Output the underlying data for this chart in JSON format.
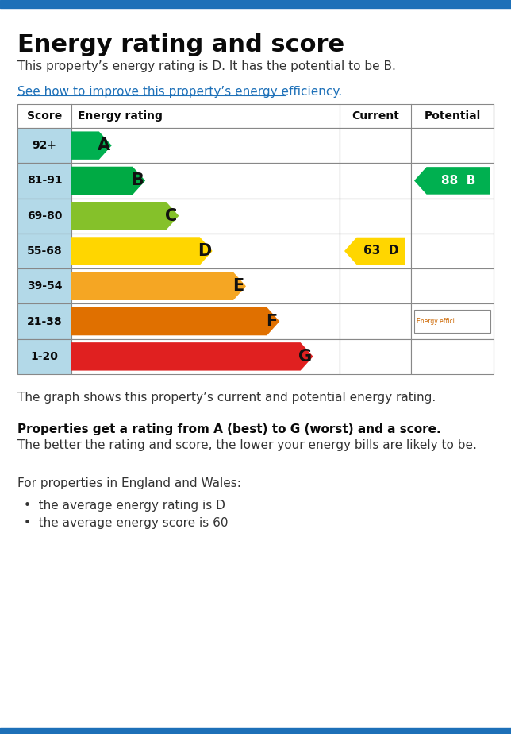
{
  "title": "Energy rating and score",
  "subtitle": "This property’s energy rating is D. It has the potential to be B.",
  "link_text": "See how to improve this property’s energy efficiency",
  "bg_color": "#ffffff",
  "border_top_color": "#1d70b8",
  "border_bottom_color": "#1d70b8",
  "ratings": [
    {
      "score": "92+",
      "label": "A"
    },
    {
      "score": "81-91",
      "label": "B"
    },
    {
      "score": "69-80",
      "label": "C"
    },
    {
      "score": "55-68",
      "label": "D"
    },
    {
      "score": "39-54",
      "label": "E"
    },
    {
      "score": "21-38",
      "label": "F"
    },
    {
      "score": "1-20",
      "label": "G"
    }
  ],
  "current": {
    "score": 63,
    "label": "D",
    "color": "#ffd600",
    "row": 3
  },
  "potential": {
    "score": 88,
    "label": "B",
    "color": "#00b050",
    "row": 1
  },
  "footer_text1": "The graph shows this property’s current and potential energy rating.",
  "footer_bold": "Properties get a rating from A (best) to G (worst) and a score.",
  "footer_text2": "The better the rating and score, the lower your energy bills are likely to be.",
  "footer_wales": "For properties in England and Wales:",
  "bullet1": "the average energy rating is D",
  "bullet2": "the average energy score is 60",
  "score_col_color": "#b3d9e8",
  "bar_colors": [
    "#00b050",
    "#00aa44",
    "#85c12a",
    "#ffd600",
    "#f5a623",
    "#e07000",
    "#e02020"
  ],
  "bar_bg_colors": [
    "#8ccea0",
    "#8ccea0",
    "#c5e86c",
    "#ffffa0",
    "#fcd89a",
    "#f5b87a",
    "#f08080"
  ]
}
